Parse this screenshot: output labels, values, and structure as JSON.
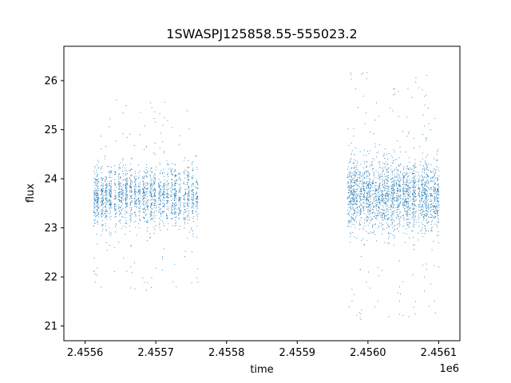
{
  "chart_data": {
    "type": "scatter",
    "title": "1SWASPJ125858.55-555023.2",
    "xlabel": "time",
    "ylabel": "flux",
    "x_offset_label": "1e6",
    "xlim": [
      2455570,
      2456130
    ],
    "ylim": [
      20.7,
      26.7
    ],
    "x_ticks": [
      2455600,
      2455700,
      2455800,
      2455900,
      2456000,
      2456100
    ],
    "x_tick_labels": [
      "2.4556",
      "2.4557",
      "2.4558",
      "2.4559",
      "2.4560",
      "2.4561"
    ],
    "y_ticks": [
      21,
      22,
      23,
      24,
      25,
      26
    ],
    "y_tick_labels": [
      "21",
      "22",
      "23",
      "24",
      "25",
      "26"
    ],
    "grid": false,
    "marker_color": "#1f77b4",
    "series": [
      {
        "segments": [
          {
            "x_start": 2455610,
            "x_end": 2455760,
            "y_center": 23.65,
            "y_spread": 0.55,
            "outlier_spread": 1.4
          },
          {
            "x_start": 2455970,
            "x_end": 2456100,
            "y_center": 23.65,
            "y_spread": 0.65,
            "outlier_spread": 1.8
          }
        ]
      }
    ]
  }
}
